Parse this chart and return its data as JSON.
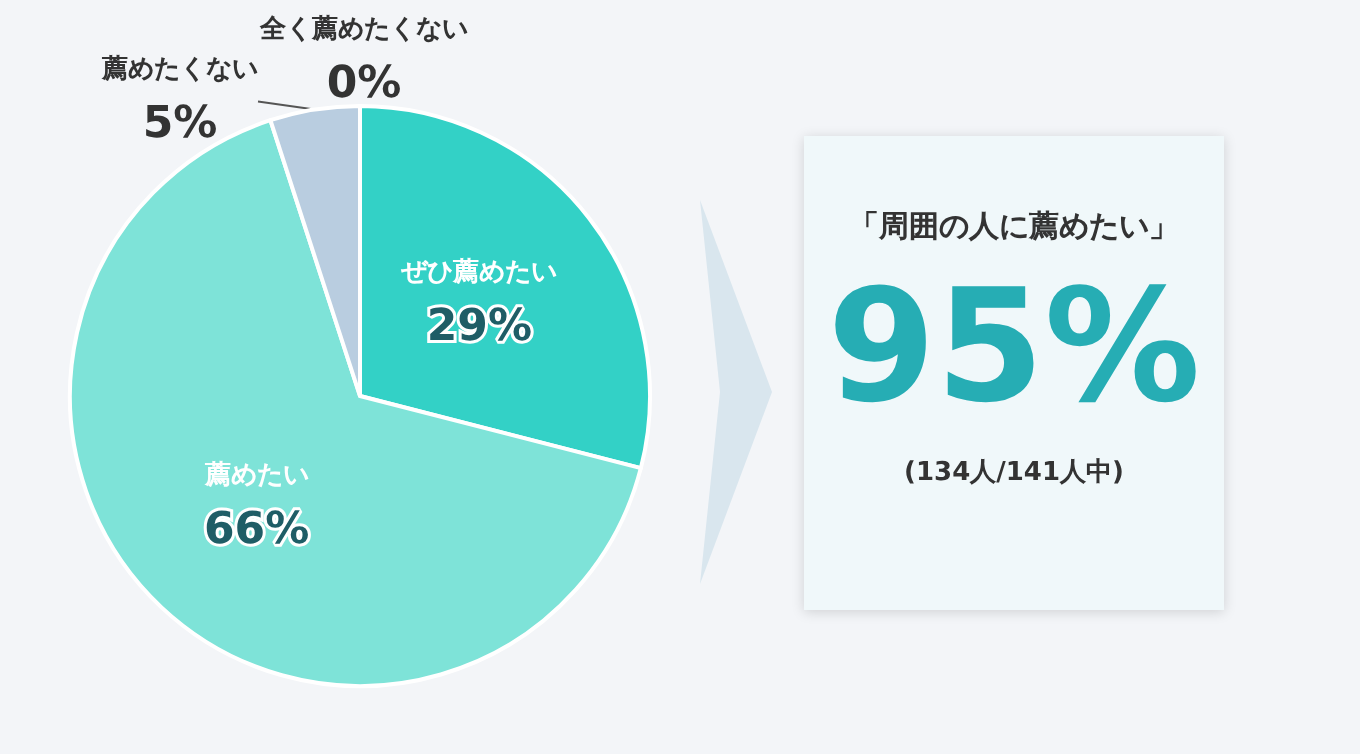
{
  "chart_data": [
    {
      "type": "pie",
      "categories": [
        "ぜひ薦めたい",
        "薦めたい",
        "薦めたくない",
        "全く薦めたくない"
      ],
      "values": [
        29,
        66,
        5,
        0
      ],
      "colors": [
        "#33d1c6",
        "#7ee3d8",
        "#b9cde0",
        "#a9bfd6"
      ],
      "value_labels": [
        "29%",
        "66%",
        "5%",
        "0%"
      ]
    },
    {
      "type": "other",
      "title": "「周囲の人に薦めたい」",
      "annotations": [
        "95%",
        "(134人/141人中)"
      ]
    }
  ]
}
